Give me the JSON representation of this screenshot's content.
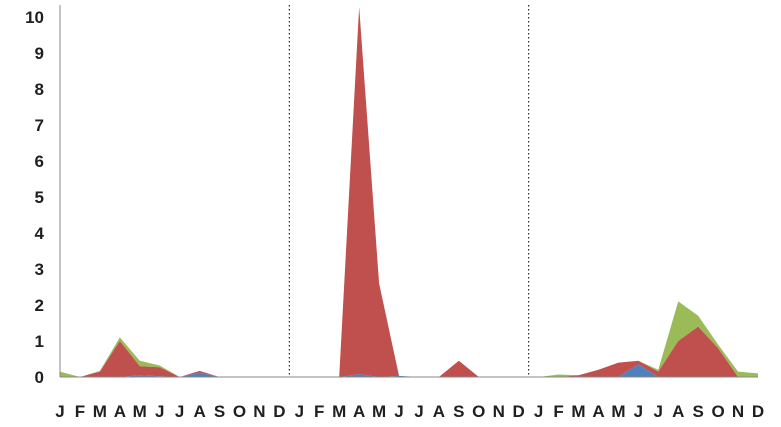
{
  "chart_data": {
    "type": "area",
    "title": "",
    "xlabel": "",
    "ylabel": "",
    "ylim": [
      0,
      10
    ],
    "yticks": [
      0,
      1,
      2,
      3,
      4,
      5,
      6,
      7,
      8,
      9,
      10
    ],
    "grid": false,
    "legend": "none",
    "stacked": true,
    "x": [
      "J",
      "F",
      "M",
      "A",
      "M",
      "J",
      "J",
      "A",
      "S",
      "O",
      "N",
      "D",
      "J",
      "F",
      "M",
      "A",
      "M",
      "J",
      "J",
      "A",
      "S",
      "O",
      "N",
      "D",
      "J",
      "F",
      "M",
      "A",
      "M",
      "J",
      "J",
      "A",
      "S",
      "O",
      "N",
      "D"
    ],
    "year_separators_after": [
      11,
      23
    ],
    "series": [
      {
        "color": "#4f81bd",
        "values": [
          0,
          0,
          0,
          0,
          0.05,
          0.02,
          0,
          0.12,
          0,
          0,
          0,
          0,
          0,
          0,
          0,
          0.08,
          0,
          0.03,
          0,
          0,
          0,
          0,
          0,
          0,
          0,
          0,
          0,
          0,
          0,
          0.35,
          0,
          0,
          0,
          0,
          0,
          0
        ]
      },
      {
        "color": "#c0504d",
        "values": [
          0,
          0,
          0.15,
          1.0,
          0.25,
          0.25,
          0,
          0.05,
          0,
          0,
          0,
          0,
          0,
          0,
          0,
          10.2,
          2.6,
          0,
          0,
          0,
          0.45,
          0,
          0,
          0,
          0,
          0,
          0.05,
          0.2,
          0.4,
          0.1,
          0.15,
          1.0,
          1.4,
          0.8,
          0,
          0
        ]
      },
      {
        "color": "#9bbb59",
        "values": [
          0.15,
          0,
          0.02,
          0.1,
          0.15,
          0.05,
          0,
          0,
          0,
          0,
          0,
          0,
          0,
          0,
          0,
          0,
          0,
          0,
          0,
          0,
          0,
          0,
          0,
          0,
          0,
          0.07,
          0,
          0,
          0,
          0,
          0.05,
          1.1,
          0.3,
          0.1,
          0.15,
          0.1
        ]
      }
    ]
  }
}
